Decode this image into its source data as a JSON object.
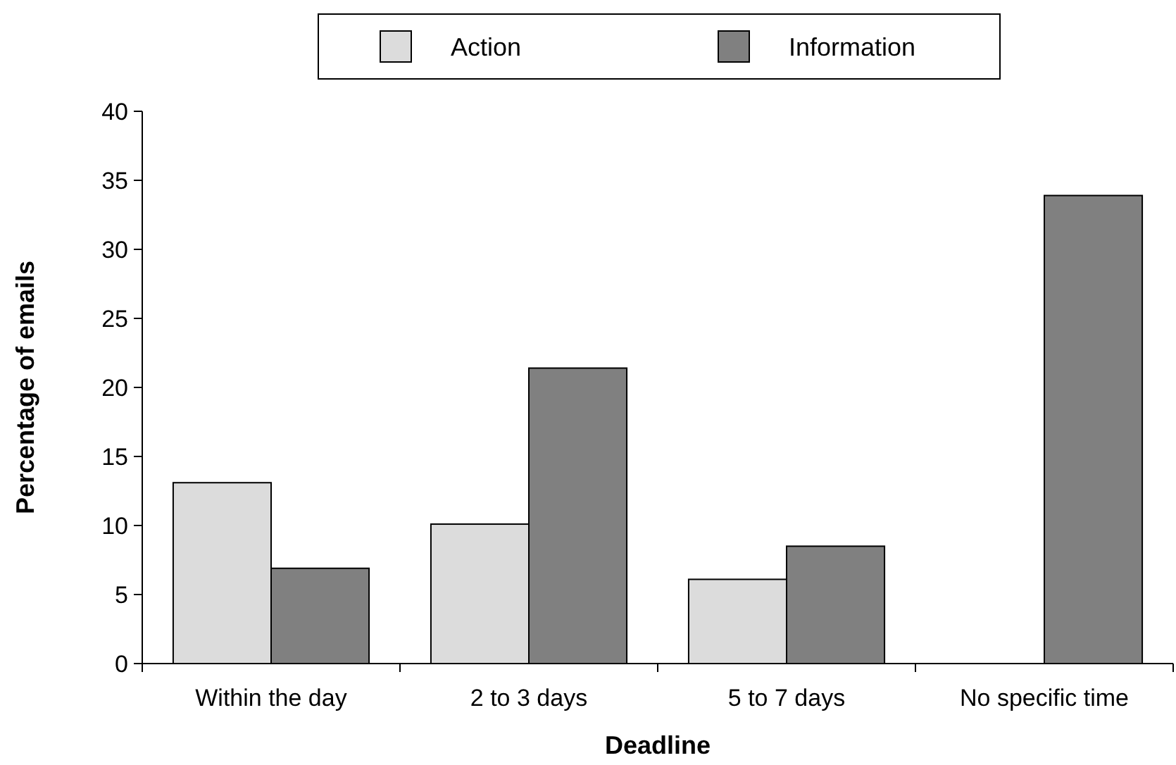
{
  "chart_data": {
    "type": "bar",
    "xlabel": "Deadline",
    "ylabel": "Percentage of emails",
    "categories": [
      "Within the day",
      "2 to 3 days",
      "5 to 7 days",
      "No specific time"
    ],
    "series": [
      {
        "name": "Action",
        "color": "#dcdcdc",
        "values": [
          13.1,
          10.1,
          6.1,
          0
        ]
      },
      {
        "name": "Information",
        "color": "#808080",
        "values": [
          6.9,
          21.4,
          8.5,
          33.9
        ]
      }
    ],
    "ylim": [
      0,
      40
    ],
    "yticks": [
      0,
      5,
      10,
      15,
      20,
      25,
      30,
      35,
      40
    ],
    "grid": false,
    "legend": "top"
  }
}
